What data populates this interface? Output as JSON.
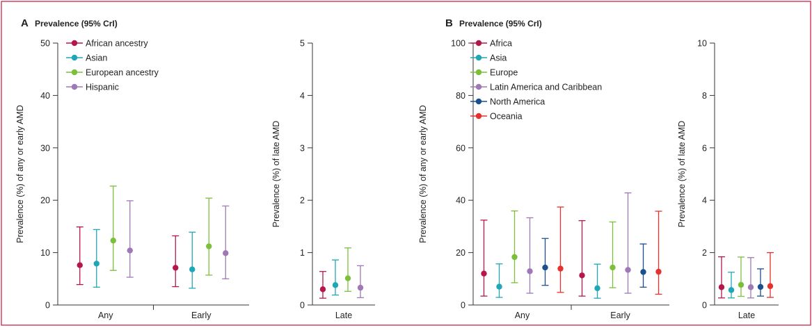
{
  "colors": {
    "frame": "#c8123f",
    "axis": "#333333"
  },
  "chart_data": [
    {
      "type": "scatter",
      "panel": "A",
      "title": "Prevalence (95% CrI)",
      "ylabel": "Prevalence (%) of any or early AMD",
      "ylim": [
        0,
        50
      ],
      "yticks": [
        0,
        10,
        20,
        30,
        40,
        50
      ],
      "categories": [
        "Any",
        "Early"
      ],
      "series": [
        {
          "name": "African ancestry",
          "color": "#b5174a",
          "values": [
            7.6,
            7.1
          ],
          "lower": [
            3.9,
            3.5
          ],
          "upper": [
            14.9,
            13.2
          ]
        },
        {
          "name": "Asian",
          "color": "#1fa7b8",
          "values": [
            7.9,
            6.8
          ],
          "lower": [
            3.4,
            3.2
          ],
          "upper": [
            14.4,
            13.9
          ]
        },
        {
          "name": "European ancestry",
          "color": "#7bbf3a",
          "values": [
            12.3,
            11.2
          ],
          "lower": [
            6.6,
            5.7
          ],
          "upper": [
            22.7,
            20.4
          ]
        },
        {
          "name": "Hispanic",
          "color": "#9f78b6",
          "values": [
            10.4,
            9.9
          ],
          "lower": [
            5.3,
            5.0
          ],
          "upper": [
            19.9,
            18.9
          ]
        }
      ]
    },
    {
      "type": "scatter",
      "panel": "A",
      "ylabel": "Prevalence (%) of late AMD",
      "ylim": [
        0,
        5
      ],
      "yticks": [
        0,
        1,
        2,
        3,
        4,
        5
      ],
      "categories": [
        "Late"
      ],
      "series": [
        {
          "color": "#b5174a",
          "values": [
            0.3
          ],
          "lower": [
            0.13
          ],
          "upper": [
            0.64
          ]
        },
        {
          "color": "#1fa7b8",
          "values": [
            0.38
          ],
          "lower": [
            0.19
          ],
          "upper": [
            0.86
          ]
        },
        {
          "color": "#7bbf3a",
          "values": [
            0.51
          ],
          "lower": [
            0.26
          ],
          "upper": [
            1.09
          ]
        },
        {
          "color": "#9f78b6",
          "values": [
            0.33
          ],
          "lower": [
            0.14
          ],
          "upper": [
            0.75
          ]
        }
      ]
    },
    {
      "type": "scatter",
      "panel": "B",
      "title": "Prevalence (95% CrI)",
      "ylabel": "Prevalence (%) of any or early AMD",
      "ylim": [
        0,
        100
      ],
      "yticks": [
        0,
        20,
        40,
        60,
        80,
        100
      ],
      "categories": [
        "Any",
        "Early"
      ],
      "series": [
        {
          "name": "Africa",
          "color": "#b5174a",
          "values": [
            12.0,
            11.3
          ],
          "lower": [
            3.4,
            3.4
          ],
          "upper": [
            32.4,
            32.2
          ]
        },
        {
          "name": "Asia",
          "color": "#1fa7b8",
          "values": [
            7.0,
            6.4
          ],
          "lower": [
            2.9,
            2.6
          ],
          "upper": [
            15.7,
            15.6
          ]
        },
        {
          "name": "Europe",
          "color": "#7bbf3a",
          "values": [
            18.3,
            14.3
          ],
          "lower": [
            8.5,
            6.6
          ],
          "upper": [
            35.9,
            31.7
          ]
        },
        {
          "name": "Latin America and Caribbean",
          "color": "#9f78b6",
          "values": [
            12.9,
            13.4
          ],
          "lower": [
            4.5,
            4.5
          ],
          "upper": [
            33.3,
            42.8
          ]
        },
        {
          "name": "North America",
          "color": "#1c4f8f",
          "values": [
            14.3,
            12.6
          ],
          "lower": [
            7.5,
            6.8
          ],
          "upper": [
            25.4,
            23.3
          ]
        },
        {
          "name": "Oceania",
          "color": "#e7312c",
          "values": [
            13.9,
            12.7
          ],
          "lower": [
            4.8,
            4.1
          ],
          "upper": [
            37.4,
            35.8
          ]
        }
      ]
    },
    {
      "type": "scatter",
      "panel": "B",
      "ylabel": "Prevalence (%) of late AMD",
      "ylim": [
        0,
        10
      ],
      "yticks": [
        0,
        2,
        4,
        6,
        8,
        10
      ],
      "categories": [
        "Late"
      ],
      "series": [
        {
          "color": "#b5174a",
          "values": [
            0.68
          ],
          "lower": [
            0.27
          ],
          "upper": [
            1.84
          ]
        },
        {
          "color": "#1fa7b8",
          "values": [
            0.57
          ],
          "lower": [
            0.27
          ],
          "upper": [
            1.25
          ]
        },
        {
          "color": "#7bbf3a",
          "values": [
            0.77
          ],
          "lower": [
            0.33
          ],
          "upper": [
            1.83
          ]
        },
        {
          "color": "#9f78b6",
          "values": [
            0.68
          ],
          "lower": [
            0.27
          ],
          "upper": [
            1.81
          ]
        },
        {
          "color": "#1c4f8f",
          "values": [
            0.69
          ],
          "lower": [
            0.34
          ],
          "upper": [
            1.38
          ]
        },
        {
          "color": "#e7312c",
          "values": [
            0.72
          ],
          "lower": [
            0.29
          ],
          "upper": [
            2.0
          ]
        }
      ]
    }
  ]
}
